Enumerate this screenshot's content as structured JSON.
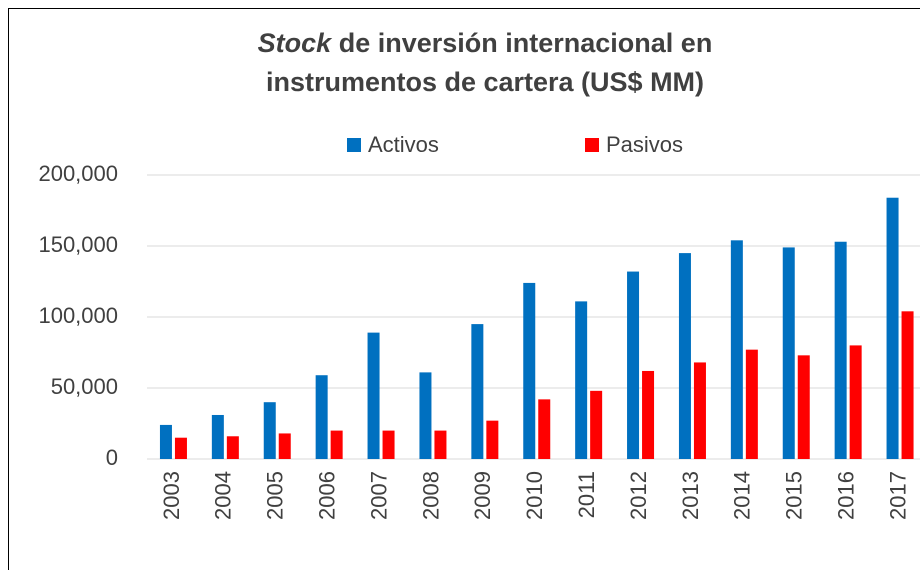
{
  "chart_data": {
    "type": "bar",
    "title": [
      "Stock",
      "de inversión internacional en",
      "instrumentos de cartera (US$ MM)"
    ],
    "categories": [
      "2003",
      "2004",
      "2005",
      "2006",
      "2007",
      "2008",
      "2009",
      "2010",
      "2011",
      "2012",
      "2013",
      "2014",
      "2015",
      "2016",
      "2017"
    ],
    "series": [
      {
        "name": "Activos",
        "color": "#0070c0",
        "values": [
          24000,
          31000,
          40000,
          59000,
          89000,
          61000,
          95000,
          124000,
          111000,
          132000,
          145000,
          154000,
          149000,
          153000,
          184000
        ]
      },
      {
        "name": "Pasivos",
        "color": "#ff0000",
        "values": [
          15000,
          16000,
          18000,
          20000,
          20000,
          20000,
          27000,
          42000,
          48000,
          62000,
          68000,
          77000,
          73000,
          80000,
          104000
        ]
      }
    ],
    "ylim": [
      0,
      200000
    ],
    "yticks": [
      0,
      {
        "value": 50000,
        "label": "50,000"
      },
      {
        "value": 100000,
        "label": "100,000"
      },
      {
        "value": 150000,
        "label": "150,000"
      },
      {
        "value": 200000,
        "label": "200,000"
      }
    ],
    "grid": true,
    "legend": "top"
  }
}
